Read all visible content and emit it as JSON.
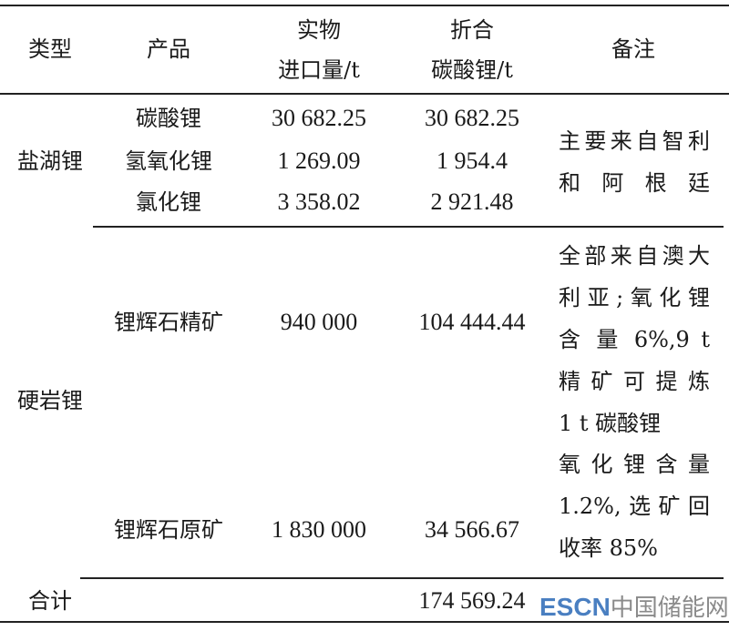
{
  "header": {
    "type": "类型",
    "product": "产品",
    "physical_line1": "实物",
    "physical_line2": "进口量/t",
    "equiv_line1": "折合",
    "equiv_line2": "碳酸锂/t",
    "remark": "备注"
  },
  "groups": [
    {
      "type": "盐湖锂",
      "rows": [
        {
          "product": "碳酸锂",
          "physical": "30 682.25",
          "equiv": "30 682.25"
        },
        {
          "product": "氢氧化锂",
          "physical": "1 269.09",
          "equiv": "1 954.4"
        },
        {
          "product": "氯化锂",
          "physical": "3 358.02",
          "equiv": "2 921.48"
        }
      ],
      "remark_lines": [
        "主要来自智利",
        "和阿根廷"
      ]
    },
    {
      "type": "硬岩锂",
      "rows": [
        {
          "product": "锂辉石精矿",
          "physical": "940 000",
          "equiv": "104 444.44",
          "remark_lines": [
            "全部来自澳大",
            "利亚;氧化锂",
            "含 量 6%,9 t",
            "精 矿 可 提 炼",
            "1 t 碳酸锂"
          ]
        },
        {
          "product": "锂辉石原矿",
          "physical": "1 830 000",
          "equiv": "34 566.67",
          "remark_lines": [
            "氧 化 锂 含 量",
            "1.2%,选矿回",
            "收率 85%"
          ]
        }
      ]
    }
  ],
  "total": {
    "label": "合计",
    "equiv": "174 569.24"
  },
  "watermark": {
    "latin": "ESCN",
    "cjk": "中国储能网"
  }
}
